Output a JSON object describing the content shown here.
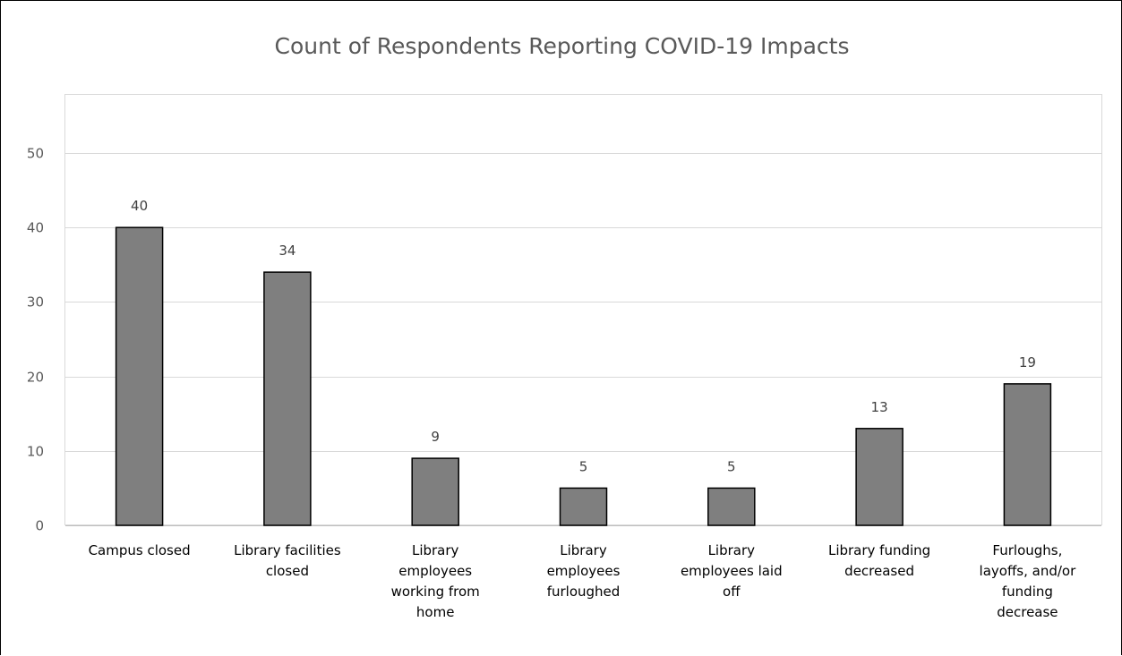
{
  "chart_data": {
    "type": "bar",
    "title": "Count of Respondents Reporting COVID-19 Impacts",
    "xlabel": "",
    "ylabel": "",
    "ylim": [
      0,
      50
    ],
    "yticks": [
      0,
      10,
      20,
      30,
      40,
      50
    ],
    "grid": true,
    "legend": "none",
    "categories": [
      "Campus closed",
      "Library facilities closed",
      "Library employees working from home",
      "Library employees furloughed",
      "Library employees laid off",
      "Library funding decreased",
      "Furloughs, layoffs, and/or funding decrease"
    ],
    "category_lines": [
      [
        "Campus closed"
      ],
      [
        "Library facilities",
        "closed"
      ],
      [
        "Library",
        "employees",
        "working from",
        "home"
      ],
      [
        "Library",
        "employees",
        "furloughed"
      ],
      [
        "Library",
        "employees laid",
        "off"
      ],
      [
        "Library funding",
        "decreased"
      ],
      [
        "Furloughs,",
        "layoffs, and/or",
        "funding",
        "decrease"
      ]
    ],
    "values": [
      40,
      34,
      9,
      5,
      5,
      13,
      19
    ],
    "data_labels": [
      "40",
      "34",
      "9",
      "5",
      "5",
      "13",
      "19"
    ],
    "bar_color": "#7f7f7f",
    "bar_edge_color": "#000000",
    "grid_color": "#d9d9d9"
  }
}
